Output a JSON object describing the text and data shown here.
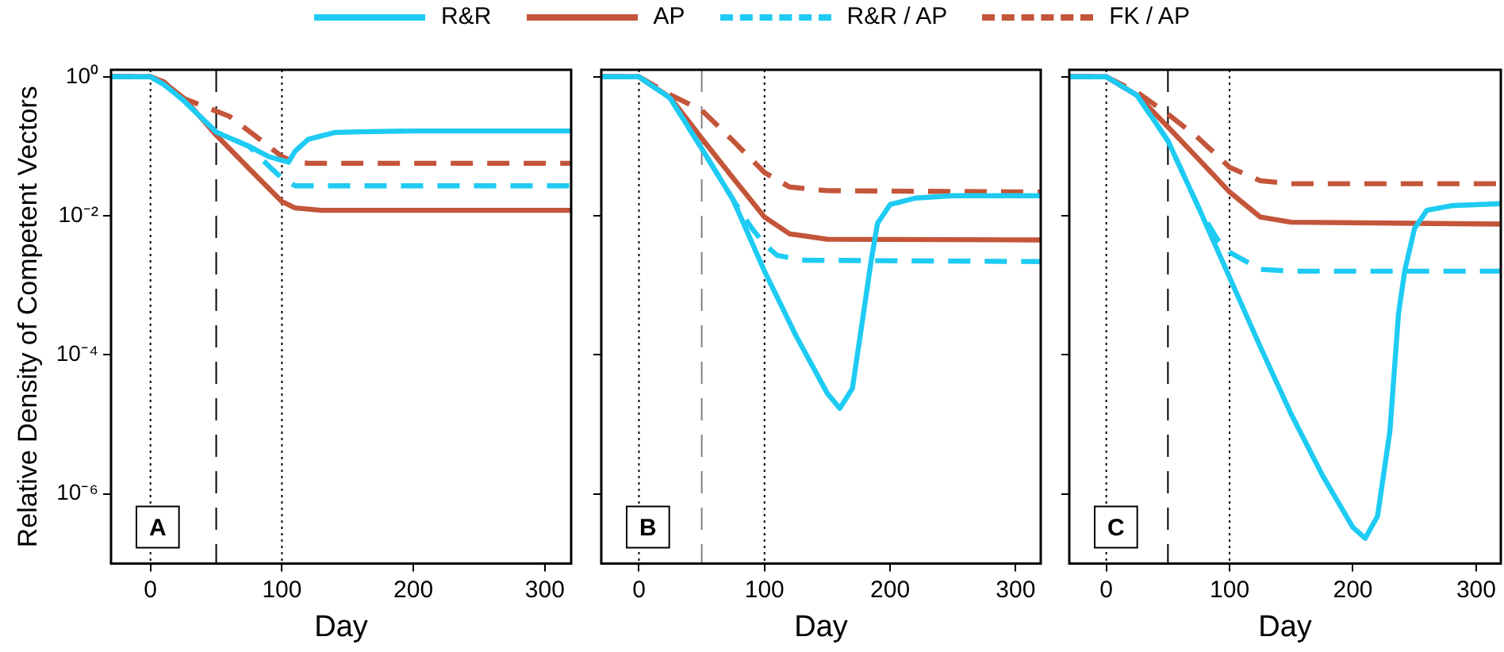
{
  "chart_data": [
    {
      "type": "line",
      "xlabel": "Day",
      "ylabel": "Relative Density of Competent Vectors",
      "annotations": [
        "A"
      ],
      "xlim": [
        -30,
        320
      ],
      "xticks": [
        0,
        100,
        200,
        300
      ],
      "ylim": [
        1e-07,
        1.26
      ],
      "log": "y",
      "yticks": [
        {
          "value": 1,
          "label": "10⁰"
        },
        {
          "value": 0.01,
          "label": "10⁻²"
        },
        {
          "value": 0.0001,
          "label": "10⁻⁴"
        },
        {
          "value": 1e-06,
          "label": "10⁻⁶"
        }
      ],
      "grid": false,
      "legend": "top",
      "marker": "none",
      "ref_lines": [
        {
          "axis": "x",
          "value": 0,
          "color": "#000000",
          "line_style": "dotted"
        },
        {
          "axis": "x",
          "value": 50,
          "color": "#000000",
          "line_style": "dashed"
        },
        {
          "axis": "x",
          "value": 100,
          "color": "#000000",
          "line_style": "dotted"
        }
      ],
      "series": [
        {
          "name": "R&R",
          "color": "#1ecbf3",
          "line_style": "solid",
          "x": [
            -30,
            0,
            10,
            25,
            50,
            75,
            90,
            100,
            105,
            110,
            120,
            140,
            160,
            200,
            320
          ],
          "values": [
            1,
            1,
            0.78,
            0.46,
            0.16,
            0.1,
            0.071,
            0.063,
            0.059,
            0.085,
            0.126,
            0.158,
            0.162,
            0.166,
            0.166
          ]
        },
        {
          "name": "AP",
          "color": "#c4553a",
          "line_style": "solid",
          "x": [
            -30,
            0,
            10,
            25,
            50,
            75,
            100,
            110,
            130,
            320
          ],
          "values": [
            1,
            1,
            0.83,
            0.5,
            0.145,
            0.048,
            0.016,
            0.013,
            0.012,
            0.012
          ]
        },
        {
          "name": "R&R / AP",
          "color": "#1ecbf3",
          "line_style": "dashed",
          "x": [
            -30,
            0,
            10,
            25,
            50,
            75,
            90,
            100,
            110,
            320
          ],
          "values": [
            1,
            1,
            0.78,
            0.46,
            0.16,
            0.1,
            0.052,
            0.035,
            0.027,
            0.027
          ]
        },
        {
          "name": "FK / AP",
          "color": "#c4553a",
          "line_style": "dashed",
          "x": [
            -30,
            0,
            10,
            25,
            45,
            60,
            80,
            100,
            110,
            120,
            320
          ],
          "values": [
            1,
            1,
            0.85,
            0.49,
            0.35,
            0.27,
            0.14,
            0.071,
            0.059,
            0.057,
            0.057
          ]
        }
      ]
    },
    {
      "type": "line",
      "xlabel": "Day",
      "annotations": [
        "B"
      ],
      "xlim": [
        -30,
        320
      ],
      "xticks": [
        0,
        100,
        200,
        300
      ],
      "ylim": [
        1e-07,
        1.26
      ],
      "log": "y",
      "yticks": [
        {
          "value": 1,
          "label": null
        },
        {
          "value": 0.01,
          "label": null
        },
        {
          "value": 0.0001,
          "label": null
        },
        {
          "value": 1e-06,
          "label": null
        }
      ],
      "tick_labels": "x",
      "grid": false,
      "marker": "none",
      "ref_lines": [
        {
          "axis": "x",
          "value": 0,
          "color": "#000000",
          "line_style": "dotted"
        },
        {
          "axis": "x",
          "value": 50,
          "color": "#808080",
          "line_style": "dashed"
        },
        {
          "axis": "x",
          "value": 100,
          "color": "#000000",
          "line_style": "dotted"
        }
      ],
      "series": [
        {
          "color": "#1ecbf3",
          "line_style": "solid",
          "x": [
            -30,
            0,
            25,
            50,
            75,
            100,
            125,
            150,
            160,
            170,
            180,
            185,
            190,
            200,
            220,
            250,
            320
          ],
          "values": [
            1,
            1,
            0.49,
            0.093,
            0.017,
            0.0016,
            0.00019,
            2.8e-05,
            1.7e-05,
            3.3e-05,
            0.00055,
            0.0023,
            0.0078,
            0.0145,
            0.018,
            0.0195,
            0.0195
          ]
        },
        {
          "color": "#c4553a",
          "line_style": "solid",
          "x": [
            -30,
            0,
            25,
            50,
            75,
            100,
            120,
            150,
            320
          ],
          "values": [
            1,
            1,
            0.5,
            0.13,
            0.035,
            0.0096,
            0.0055,
            0.0046,
            0.0045
          ]
        },
        {
          "color": "#1ecbf3",
          "line_style": "dashed",
          "x": [
            -30,
            0,
            25,
            50,
            75,
            90,
            100,
            110,
            130,
            320
          ],
          "values": [
            1,
            1,
            0.49,
            0.093,
            0.017,
            0.0066,
            0.0039,
            0.0027,
            0.0023,
            0.0022
          ]
        },
        {
          "color": "#c4553a",
          "line_style": "dashed",
          "x": [
            -30,
            0,
            25,
            50,
            75,
            100,
            120,
            150,
            320
          ],
          "values": [
            1,
            1,
            0.55,
            0.33,
            0.12,
            0.042,
            0.026,
            0.023,
            0.022
          ]
        }
      ]
    },
    {
      "type": "line",
      "xlabel": "Day",
      "annotations": [
        "C"
      ],
      "xlim": [
        -30,
        320
      ],
      "xticks": [
        0,
        100,
        200,
        300
      ],
      "ylim": [
        1e-07,
        1.26
      ],
      "log": "y",
      "yticks": [
        {
          "value": 1,
          "label": null
        },
        {
          "value": 0.01,
          "label": null
        },
        {
          "value": 0.0001,
          "label": null
        },
        {
          "value": 1e-06,
          "label": null
        }
      ],
      "tick_labels": "x",
      "grid": false,
      "marker": "none",
      "ref_lines": [
        {
          "axis": "x",
          "value": 0,
          "color": "#000000",
          "line_style": "dotted"
        },
        {
          "axis": "x",
          "value": 50,
          "color": "#000000",
          "line_style": "dashed"
        },
        {
          "axis": "x",
          "value": 100,
          "color": "#000000",
          "line_style": "dotted"
        }
      ],
      "series": [
        {
          "color": "#1ecbf3",
          "line_style": "solid",
          "x": [
            -30,
            0,
            25,
            50,
            75,
            100,
            125,
            150,
            175,
            200,
            210,
            220,
            230,
            237,
            242,
            250,
            260,
            280,
            320
          ],
          "values": [
            1,
            1,
            0.54,
            0.12,
            0.013,
            0.0013,
            0.00013,
            1.4e-05,
            1.9e-06,
            3.3e-07,
            2.3e-07,
            4.8e-07,
            7.9e-06,
            0.00039,
            0.0016,
            0.0066,
            0.012,
            0.014,
            0.015
          ]
        },
        {
          "color": "#c4553a",
          "line_style": "solid",
          "x": [
            -30,
            0,
            25,
            50,
            75,
            100,
            125,
            150,
            320
          ],
          "values": [
            1,
            1,
            0.54,
            0.19,
            0.065,
            0.022,
            0.0096,
            0.0081,
            0.0076
          ]
        },
        {
          "color": "#1ecbf3",
          "line_style": "dashed",
          "x": [
            -30,
            0,
            25,
            50,
            75,
            90,
            100,
            125,
            150,
            320
          ],
          "values": [
            1,
            1,
            0.54,
            0.12,
            0.013,
            0.0046,
            0.003,
            0.0017,
            0.0016,
            0.0016
          ]
        },
        {
          "color": "#c4553a",
          "line_style": "dashed",
          "x": [
            -30,
            0,
            25,
            50,
            75,
            100,
            125,
            150,
            320
          ],
          "values": [
            1,
            1,
            0.6,
            0.29,
            0.13,
            0.05,
            0.032,
            0.029,
            0.029
          ]
        }
      ]
    }
  ]
}
